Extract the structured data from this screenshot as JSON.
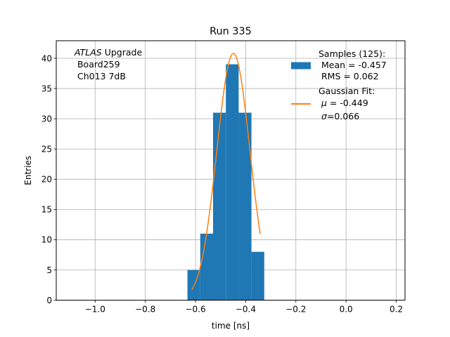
{
  "chart_data": {
    "type": "bar",
    "title": "Run 335",
    "xlabel": "time [ns]",
    "ylabel": "Entries",
    "xlim": [
      -1.155,
      0.235
    ],
    "ylim": [
      0,
      42.9
    ],
    "grid": true,
    "xticks": [
      -1.0,
      -0.8,
      -0.6,
      -0.4,
      -0.2,
      0.0,
      0.2
    ],
    "xtick_labels": [
      "−1.0",
      "−0.8",
      "−0.6",
      "−0.4",
      "−0.2",
      "0.0",
      "0.2"
    ],
    "yticks": [
      0,
      5,
      10,
      15,
      20,
      25,
      30,
      35,
      40
    ],
    "ytick_labels": [
      "0",
      "5",
      "10",
      "15",
      "20",
      "25",
      "30",
      "35",
      "40"
    ],
    "histogram": {
      "bin_edges": [
        -0.632,
        -0.581,
        -0.53,
        -0.479,
        -0.428,
        -0.377,
        -0.326
      ],
      "counts": [
        5,
        11,
        31,
        39,
        31,
        8
      ],
      "color": "#1f77b4"
    },
    "fit": {
      "type": "gaussian",
      "amplitude": 40.8,
      "mu": -0.449,
      "sigma": 0.066,
      "x_range": [
        -0.615,
        -0.342
      ],
      "color": "#ff7f0e"
    },
    "annotation": {
      "italic": "ATLAS",
      "line1_rest": " Upgrade",
      "line2": " Board259",
      "line3": " Ch013 7dB"
    },
    "legend": {
      "location": "top-right",
      "samples": [
        "Samples (125):",
        " Mean = -0.457",
        " RMS = 0.062"
      ],
      "fit_title": "Gaussian Fit:",
      "fit_mu_symbol": "μ",
      "fit_mu_value": " = -0.449",
      "fit_sigma_symbol": "σ",
      "fit_sigma_value": "=0.066"
    }
  }
}
